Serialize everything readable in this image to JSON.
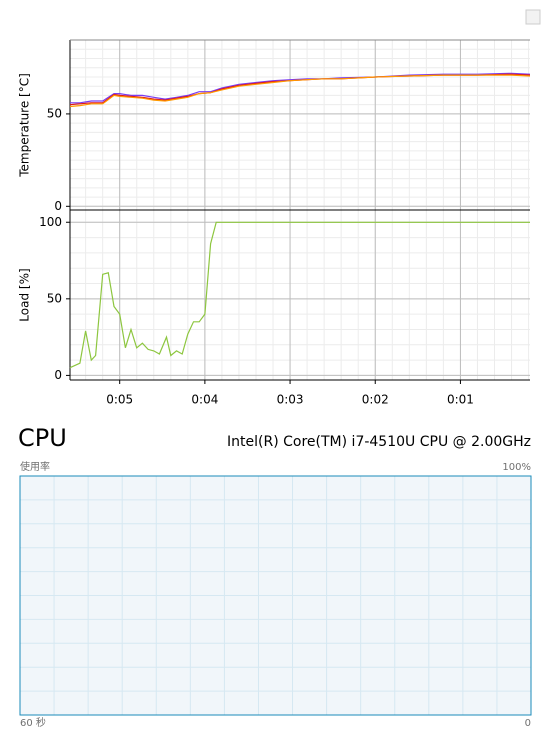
{
  "chart_data": [
    {
      "type": "line",
      "ylabel": "Temperature [°C]",
      "x": [
        335,
        328,
        320,
        312,
        304,
        300,
        292,
        284,
        276,
        268,
        260,
        252,
        244,
        236,
        228,
        216,
        204,
        192,
        180,
        168,
        156,
        144,
        120,
        96,
        72,
        48,
        24,
        11
      ],
      "series": [
        {
          "color": "#7a3cf0",
          "values": [
            56,
            56,
            57,
            57,
            61,
            61,
            60,
            60,
            59,
            58,
            59,
            60,
            62,
            62,
            64,
            66,
            67,
            68,
            68.5,
            69,
            69,
            69.5,
            70,
            71,
            71.5,
            71.5,
            72,
            71.5
          ]
        },
        {
          "color": "#e01818",
          "values": [
            55,
            55.5,
            56,
            56,
            60.5,
            60,
            59.5,
            59,
            58,
            57.5,
            58.5,
            59.5,
            61,
            61.5,
            63.5,
            65.5,
            66.5,
            67.5,
            68,
            68.5,
            69,
            69,
            70,
            70.5,
            71,
            71,
            71.5,
            71
          ]
        },
        {
          "color": "#ff9a00",
          "values": [
            54,
            54.5,
            55.5,
            55.5,
            60,
            59.5,
            59,
            58.5,
            57.5,
            57,
            58,
            59,
            61,
            61.5,
            63,
            65,
            66,
            67,
            68,
            68.5,
            69,
            69,
            70,
            70.5,
            71,
            71,
            71,
            70.5
          ]
        }
      ],
      "xlim": [
        335,
        11
      ],
      "ylim": [
        -2,
        90
      ],
      "yticks": [
        0,
        50
      ],
      "minor_ystep": 5,
      "minor_xstep": 12,
      "grid": true
    },
    {
      "type": "line",
      "ylabel": "Load [%]",
      "x": [
        335,
        328,
        324,
        320,
        317,
        312,
        308,
        304,
        300,
        296,
        292,
        288,
        284,
        280,
        276,
        272,
        267,
        264,
        260,
        256,
        252,
        248,
        244,
        240,
        236,
        232,
        11
      ],
      "series": [
        {
          "color": "#8dc63f",
          "values": [
            5,
            8,
            29,
            10,
            13,
            66,
            67,
            45,
            40,
            18,
            30,
            18,
            21,
            17,
            16,
            14,
            25,
            13,
            16,
            14,
            27,
            35,
            35,
            40,
            86,
            100,
            100
          ]
        }
      ],
      "xlim": [
        335,
        11
      ],
      "ylim": [
        -3,
        108
      ],
      "yticks": [
        0,
        50,
        100
      ],
      "minor_ystep": 10,
      "minor_xstep": 12,
      "xticks": [
        {
          "value": 300,
          "label": "0:05"
        },
        {
          "value": 240,
          "label": "0:04"
        },
        {
          "value": 180,
          "label": "0:03"
        },
        {
          "value": 120,
          "label": "0:02"
        },
        {
          "value": 60,
          "label": "0:01"
        }
      ],
      "grid": true
    }
  ],
  "cpu_panel": {
    "title": "CPU",
    "processor": "Intel(R) Core(TM) i7-4510U CPU @ 2.00GHz",
    "usage_label": "使用率",
    "max_label": "100%",
    "time_label": "60 秒",
    "min_label": "0"
  }
}
